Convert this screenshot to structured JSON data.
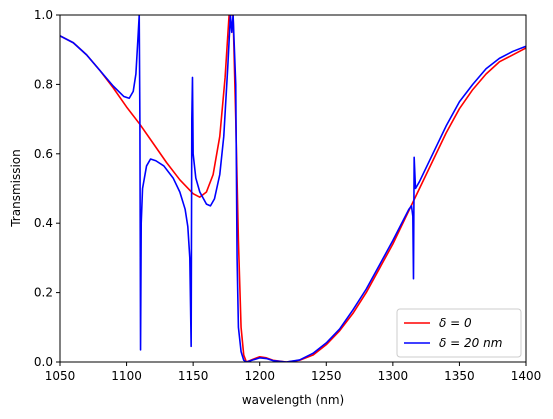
{
  "chart_data": {
    "type": "line",
    "xlabel": "wavelength (nm)",
    "ylabel": "Transmission",
    "xlim": [
      1050,
      1400
    ],
    "ylim": [
      0,
      1
    ],
    "x_ticks": [
      1050,
      1100,
      1150,
      1200,
      1250,
      1300,
      1350,
      1400
    ],
    "y_ticks": [
      0.0,
      0.2,
      0.4,
      0.6,
      0.8,
      1.0
    ],
    "grid": false,
    "legend_position": "bottom-right",
    "series": [
      {
        "name": "δ = 0",
        "color": "#ff0000",
        "points": [
          [
            1050,
            0.94
          ],
          [
            1060,
            0.92
          ],
          [
            1070,
            0.885
          ],
          [
            1080,
            0.84
          ],
          [
            1090,
            0.79
          ],
          [
            1100,
            0.735
          ],
          [
            1110,
            0.685
          ],
          [
            1120,
            0.63
          ],
          [
            1130,
            0.575
          ],
          [
            1140,
            0.525
          ],
          [
            1150,
            0.485
          ],
          [
            1155,
            0.475
          ],
          [
            1160,
            0.49
          ],
          [
            1165,
            0.54
          ],
          [
            1170,
            0.65
          ],
          [
            1174,
            0.82
          ],
          [
            1177,
            1.0
          ],
          [
            1180,
            1.0
          ],
          [
            1182,
            0.7
          ],
          [
            1184,
            0.35
          ],
          [
            1186,
            0.1
          ],
          [
            1188,
            0.02
          ],
          [
            1190,
            0.0
          ],
          [
            1195,
            0.008
          ],
          [
            1200,
            0.015
          ],
          [
            1205,
            0.012
          ],
          [
            1210,
            0.005
          ],
          [
            1220,
            0.0
          ],
          [
            1230,
            0.005
          ],
          [
            1240,
            0.02
          ],
          [
            1250,
            0.05
          ],
          [
            1260,
            0.09
          ],
          [
            1270,
            0.14
          ],
          [
            1280,
            0.2
          ],
          [
            1290,
            0.27
          ],
          [
            1300,
            0.34
          ],
          [
            1310,
            0.42
          ],
          [
            1320,
            0.5
          ],
          [
            1330,
            0.58
          ],
          [
            1340,
            0.66
          ],
          [
            1350,
            0.73
          ],
          [
            1360,
            0.785
          ],
          [
            1370,
            0.83
          ],
          [
            1380,
            0.865
          ],
          [
            1390,
            0.885
          ],
          [
            1400,
            0.905
          ]
        ]
      },
      {
        "name": "δ = 20 nm",
        "color": "#0000ff",
        "points": [
          [
            1050,
            0.94
          ],
          [
            1060,
            0.92
          ],
          [
            1070,
            0.885
          ],
          [
            1080,
            0.84
          ],
          [
            1090,
            0.795
          ],
          [
            1098,
            0.765
          ],
          [
            1102,
            0.76
          ],
          [
            1105,
            0.78
          ],
          [
            1107,
            0.83
          ],
          [
            1108.5,
            0.93
          ],
          [
            1109.5,
            1.0
          ],
          [
            1110,
            0.7
          ],
          [
            1110.5,
            0.035
          ],
          [
            1111,
            0.4
          ],
          [
            1112,
            0.5
          ],
          [
            1115,
            0.565
          ],
          [
            1118,
            0.585
          ],
          [
            1122,
            0.58
          ],
          [
            1128,
            0.565
          ],
          [
            1135,
            0.53
          ],
          [
            1140,
            0.49
          ],
          [
            1144,
            0.44
          ],
          [
            1146,
            0.39
          ],
          [
            1147.5,
            0.3
          ],
          [
            1148.5,
            0.045
          ],
          [
            1149,
            0.7
          ],
          [
            1149.5,
            0.82
          ],
          [
            1150,
            0.6
          ],
          [
            1152,
            0.53
          ],
          [
            1155,
            0.49
          ],
          [
            1160,
            0.455
          ],
          [
            1163,
            0.45
          ],
          [
            1166,
            0.47
          ],
          [
            1170,
            0.54
          ],
          [
            1173,
            0.65
          ],
          [
            1176,
            0.85
          ],
          [
            1178,
            1.0
          ],
          [
            1179,
            0.95
          ],
          [
            1180,
            1.0
          ],
          [
            1182,
            0.8
          ],
          [
            1183,
            0.3
          ],
          [
            1184,
            0.1
          ],
          [
            1186,
            0.03
          ],
          [
            1188,
            0.005
          ],
          [
            1190,
            0.0
          ],
          [
            1195,
            0.006
          ],
          [
            1200,
            0.012
          ],
          [
            1205,
            0.01
          ],
          [
            1210,
            0.004
          ],
          [
            1220,
            0.0
          ],
          [
            1230,
            0.006
          ],
          [
            1240,
            0.025
          ],
          [
            1250,
            0.055
          ],
          [
            1260,
            0.095
          ],
          [
            1270,
            0.15
          ],
          [
            1280,
            0.21
          ],
          [
            1290,
            0.28
          ],
          [
            1300,
            0.35
          ],
          [
            1308,
            0.41
          ],
          [
            1312,
            0.44
          ],
          [
            1314,
            0.45
          ],
          [
            1315,
            0.42
          ],
          [
            1315.5,
            0.24
          ],
          [
            1316,
            0.59
          ],
          [
            1317,
            0.5
          ],
          [
            1320,
            0.52
          ],
          [
            1330,
            0.6
          ],
          [
            1340,
            0.68
          ],
          [
            1350,
            0.75
          ],
          [
            1360,
            0.8
          ],
          [
            1370,
            0.845
          ],
          [
            1380,
            0.875
          ],
          [
            1390,
            0.895
          ],
          [
            1400,
            0.91
          ]
        ]
      }
    ]
  }
}
